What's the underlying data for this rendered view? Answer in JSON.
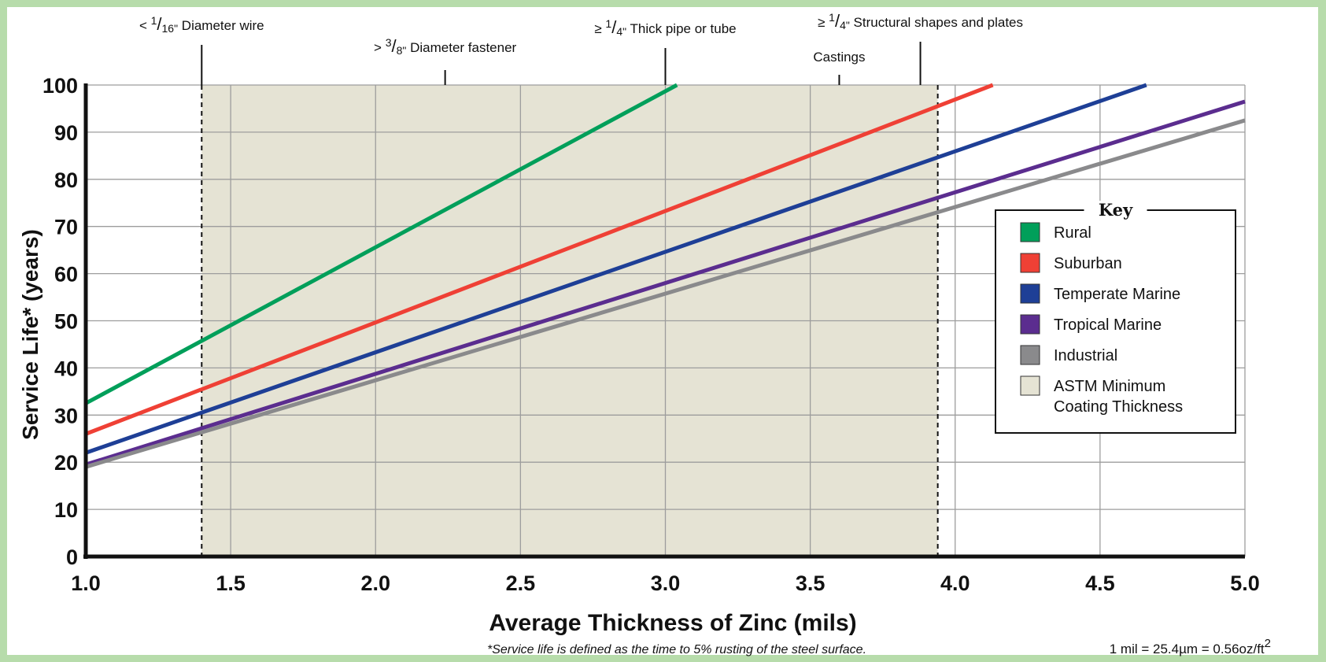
{
  "colors": {
    "rural": "#009f5a",
    "suburban": "#ef4035",
    "temperate_marine": "#1e3f96",
    "tropical_marine": "#5b2d8f",
    "industrial": "#8a8a8c",
    "astm_band": "#e5e3d4",
    "grid": "#9d9d9d",
    "frame": "#b7dcab"
  },
  "chart_data": {
    "type": "line",
    "xlabel": "Average Thickness of Zinc (mils)",
    "ylabel": "Service Life* (years)",
    "xlim": [
      1.0,
      5.0
    ],
    "ylim": [
      0,
      100
    ],
    "x_ticks": [
      "1.0",
      "1.5",
      "2.0",
      "2.5",
      "3.0",
      "3.5",
      "4.0",
      "4.5",
      "5.0"
    ],
    "y_ticks": [
      "0",
      "10",
      "20",
      "30",
      "40",
      "50",
      "60",
      "70",
      "80",
      "90",
      "100"
    ],
    "grid": true,
    "series": [
      {
        "name": "Rural",
        "color_key": "rural",
        "points": [
          [
            1.0,
            32.5
          ],
          [
            3.04,
            100
          ]
        ]
      },
      {
        "name": "Suburban",
        "color_key": "suburban",
        "points": [
          [
            1.0,
            26
          ],
          [
            4.13,
            100
          ]
        ]
      },
      {
        "name": "Temperate Marine",
        "color_key": "temperate_marine",
        "points": [
          [
            1.0,
            22
          ],
          [
            4.66,
            100
          ]
        ]
      },
      {
        "name": "Tropical Marine",
        "color_key": "tropical_marine",
        "points": [
          [
            1.0,
            19.5
          ],
          [
            5.0,
            96.5
          ]
        ]
      },
      {
        "name": "Industrial",
        "color_key": "industrial",
        "points": [
          [
            1.0,
            19
          ],
          [
            5.0,
            92.5
          ]
        ]
      }
    ],
    "astm_band": {
      "x_start": 1.4,
      "x_end": 3.94
    },
    "annotations": [
      {
        "pre": "< ",
        "num": "1",
        "den": "16\"",
        "text": "Diameter wire",
        "x": 1.4,
        "dashed": true
      },
      {
        "pre": "> ",
        "num": "3",
        "den": "8\"",
        "text": "Diameter fastener",
        "x": 2.24,
        "dashed": false
      },
      {
        "pre": "≥ ",
        "num": "1",
        "den": "4\"",
        "text": "Thick pipe or tube",
        "x": 3.0,
        "dashed": false
      },
      {
        "pre": "≥ ",
        "num": "1",
        "den": "4\"",
        "text": "Structural shapes and plates",
        "x": 3.88,
        "dashed": false
      },
      {
        "pre": "",
        "num": "",
        "den": "",
        "text": "Castings",
        "x": 3.6,
        "dashed": false
      },
      {
        "pre": "",
        "num": "",
        "den": "",
        "text": "",
        "x": 3.94,
        "dashed": true
      }
    ],
    "legend": {
      "title": "Key",
      "placement": "right",
      "items": [
        {
          "label": "Rural",
          "color_key": "rural"
        },
        {
          "label": "Suburban",
          "color_key": "suburban"
        },
        {
          "label": "Temperate Marine",
          "color_key": "temperate_marine"
        },
        {
          "label": "Tropical Marine",
          "color_key": "tropical_marine"
        },
        {
          "label": "Industrial",
          "color_key": "industrial"
        },
        {
          "label": "ASTM Minimum",
          "label2": "Coating Thickness",
          "color_key": "astm_band"
        }
      ]
    }
  },
  "footnote": "*Service life is defined as the time to 5% rusting of the steel surface.",
  "unit_note": "1 mil = 25.4µm = 0.56oz/ft",
  "unit_note_sup": "2"
}
